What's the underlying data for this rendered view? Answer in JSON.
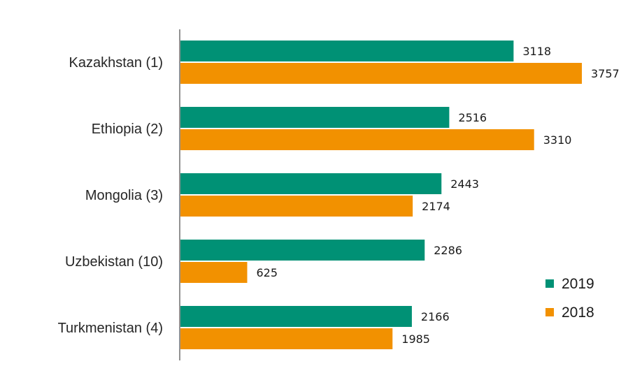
{
  "chart_data": {
    "type": "bar",
    "orientation": "horizontal",
    "title": "",
    "xlabel": "",
    "ylabel": "",
    "categories": [
      "Kazakhstan (1)",
      "Ethiopia (2)",
      "Mongolia (3)",
      "Uzbekistan (10)",
      "Turkmenistan (4)"
    ],
    "series": [
      {
        "name": "2019",
        "color": "#009175",
        "values": [
          3118,
          2516,
          2443,
          2286,
          2166
        ]
      },
      {
        "name": "2018",
        "color": "#F29100",
        "values": [
          3757,
          3310,
          2174,
          625,
          1985
        ]
      }
    ],
    "xlim": [
      0,
      4000
    ],
    "grid": false,
    "legend_position": "bottom-right",
    "axis_color": "#262626"
  }
}
